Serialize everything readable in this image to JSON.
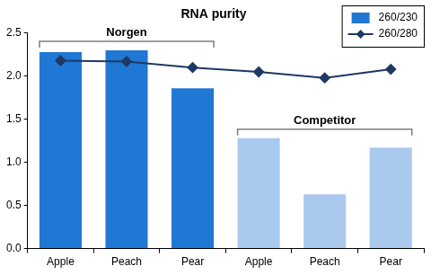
{
  "chart_data": {
    "type": "bar",
    "title": "RNA purity",
    "categories": [
      "Apple",
      "Peach",
      "Pear",
      "Apple",
      "Peach",
      "Pear"
    ],
    "series": [
      {
        "name": "260/230",
        "type": "bar",
        "colors": [
          "#1f78d4",
          "#1f78d4",
          "#1f78d4",
          "#a9c9ef",
          "#a9c9ef",
          "#a9c9ef"
        ],
        "values": [
          2.28,
          2.3,
          1.86,
          1.28,
          0.63,
          1.17
        ]
      },
      {
        "name": "260/280",
        "type": "line",
        "color": "#1f3864",
        "marker": "diamond",
        "values": [
          2.18,
          2.17,
          2.1,
          2.05,
          1.98,
          2.08
        ]
      }
    ],
    "annotations": [
      {
        "text": "Norgen",
        "span": [
          0,
          2
        ]
      },
      {
        "text": "Competitor",
        "span": [
          3,
          5
        ]
      }
    ],
    "ylim": [
      0,
      2.5
    ],
    "yticks": [
      {
        "value": 0,
        "label": "0.0"
      },
      0.5,
      {
        "value": 1,
        "label": "1.0"
      },
      1.5,
      {
        "value": 2,
        "label": "2.0"
      },
      2.5
    ],
    "grid": false,
    "legend": "upper right"
  }
}
